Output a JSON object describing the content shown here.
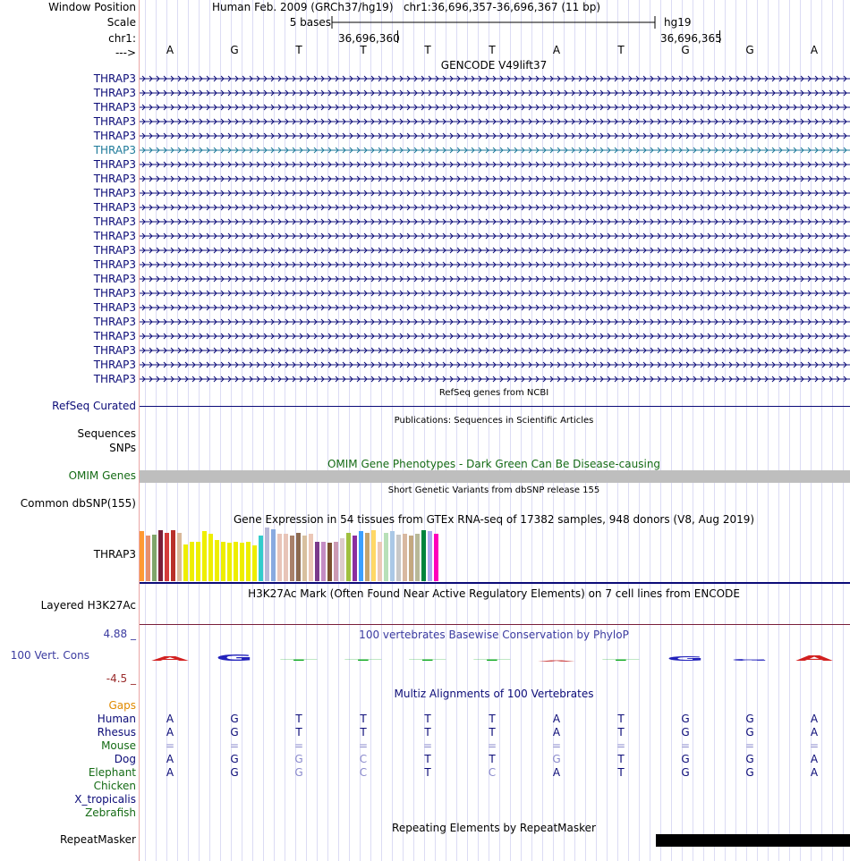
{
  "ruler": {
    "window_label": "Window Position",
    "scale_label": "Scale",
    "chrom_label": "chr1:",
    "strand_label": "--->",
    "assembly_title": "Human Feb. 2009 (GRCh37/hg19)",
    "position": "chr1:36,696,357-36,696,367 (11 bp)",
    "scale_text": "5 bases",
    "assembly_short": "hg19",
    "tick1": "36,696,360",
    "tick2": "36,696,365"
  },
  "bases": [
    "A",
    "G",
    "T",
    "T",
    "T",
    "T",
    "A",
    "T",
    "G",
    "G",
    "A"
  ],
  "gencode": {
    "title": "GENCODE V49lift37",
    "transcripts": [
      {
        "label": "THRAP3",
        "color": "#0c0c78"
      },
      {
        "label": "THRAP3",
        "color": "#0c0c78"
      },
      {
        "label": "THRAP3",
        "color": "#0c0c78"
      },
      {
        "label": "THRAP3",
        "color": "#0c0c78"
      },
      {
        "label": "THRAP3",
        "color": "#0c0c78"
      },
      {
        "label": "THRAP3",
        "color": "#1e7a9a"
      },
      {
        "label": "THRAP3",
        "color": "#0c0c78"
      },
      {
        "label": "THRAP3",
        "color": "#0c0c78"
      },
      {
        "label": "THRAP3",
        "color": "#0c0c78"
      },
      {
        "label": "THRAP3",
        "color": "#0c0c78"
      },
      {
        "label": "THRAP3",
        "color": "#0c0c78"
      },
      {
        "label": "THRAP3",
        "color": "#0c0c78"
      },
      {
        "label": "THRAP3",
        "color": "#0c0c78"
      },
      {
        "label": "THRAP3",
        "color": "#0c0c78"
      },
      {
        "label": "THRAP3",
        "color": "#0c0c78"
      },
      {
        "label": "THRAP3",
        "color": "#0c0c78"
      },
      {
        "label": "THRAP3",
        "color": "#0c0c78"
      },
      {
        "label": "THRAP3",
        "color": "#0c0c78"
      },
      {
        "label": "THRAP3",
        "color": "#0c0c78"
      },
      {
        "label": "THRAP3",
        "color": "#0c0c78"
      },
      {
        "label": "THRAP3",
        "color": "#0c0c78"
      },
      {
        "label": "THRAP3",
        "color": "#0c0c78"
      }
    ]
  },
  "refseq": {
    "title": "RefSeq genes from NCBI",
    "label": "RefSeq Curated"
  },
  "publications": {
    "title": "Publications: Sequences in Scientific Articles",
    "label_sequences": "Sequences",
    "label_snps": "SNPs"
  },
  "omim": {
    "title": "OMIM Gene Phenotypes - Dark Green Can Be Disease-causing",
    "label": "OMIM Genes"
  },
  "dbsnp": {
    "title": "Short Genetic Variants from dbSNP release 155",
    "label": "Common dbSNP(155)"
  },
  "gtex": {
    "title": "Gene Expression in 54 tissues from GTEx RNA-seq of 17382 samples, 948 donors (V8, Aug 2019)",
    "label": "THRAP3",
    "bars": [
      {
        "h": 0.93,
        "c": "#ff9a33"
      },
      {
        "h": 0.85,
        "c": "#e88f6b"
      },
      {
        "h": 0.87,
        "c": "#7fa56b"
      },
      {
        "h": 0.95,
        "c": "#7a1f3a"
      },
      {
        "h": 0.9,
        "c": "#d43b3b"
      },
      {
        "h": 0.95,
        "c": "#b9302a"
      },
      {
        "h": 0.9,
        "c": "#d9b89a"
      },
      {
        "h": 0.68,
        "c": "#eeee00"
      },
      {
        "h": 0.74,
        "c": "#eeee00"
      },
      {
        "h": 0.74,
        "c": "#eeee00"
      },
      {
        "h": 0.93,
        "c": "#eeee00"
      },
      {
        "h": 0.88,
        "c": "#eeee00"
      },
      {
        "h": 0.76,
        "c": "#eeee00"
      },
      {
        "h": 0.74,
        "c": "#eeee00"
      },
      {
        "h": 0.71,
        "c": "#eeee00"
      },
      {
        "h": 0.74,
        "c": "#eeee00"
      },
      {
        "h": 0.72,
        "c": "#eeee00"
      },
      {
        "h": 0.74,
        "c": "#eeee00"
      },
      {
        "h": 0.66,
        "c": "#eeee00"
      },
      {
        "h": 0.85,
        "c": "#33cccc"
      },
      {
        "h": 1.0,
        "c": "#b8b8d8"
      },
      {
        "h": 0.96,
        "c": "#88aae0"
      },
      {
        "h": 0.88,
        "c": "#e8c4b8"
      },
      {
        "h": 0.88,
        "c": "#e8c4b8"
      },
      {
        "h": 0.85,
        "c": "#a8806a"
      },
      {
        "h": 0.9,
        "c": "#8c6a50"
      },
      {
        "h": 0.85,
        "c": "#d8c0a0"
      },
      {
        "h": 0.88,
        "c": "#ecc8b8"
      },
      {
        "h": 0.74,
        "c": "#7a3a8c"
      },
      {
        "h": 0.74,
        "c": "#c48cc4"
      },
      {
        "h": 0.71,
        "c": "#7a5030"
      },
      {
        "h": 0.74,
        "c": "#cc9ab4"
      },
      {
        "h": 0.8,
        "c": "#ddcccc"
      },
      {
        "h": 0.9,
        "c": "#a0c040"
      },
      {
        "h": 0.85,
        "c": "#8a2ea0"
      },
      {
        "h": 0.93,
        "c": "#3ba0ff"
      },
      {
        "h": 0.9,
        "c": "#c4a46e"
      },
      {
        "h": 0.95,
        "c": "#ffd866"
      },
      {
        "h": 0.74,
        "c": "#ecc8b8"
      },
      {
        "h": 0.9,
        "c": "#b8e0b8"
      },
      {
        "h": 0.93,
        "c": "#aac8e6"
      },
      {
        "h": 0.87,
        "c": "#c8c8c8"
      },
      {
        "h": 0.88,
        "c": "#d8b8a0"
      },
      {
        "h": 0.85,
        "c": "#c4a880"
      },
      {
        "h": 0.88,
        "c": "#b8b898"
      },
      {
        "h": 0.95,
        "c": "#00843d"
      },
      {
        "h": 0.93,
        "c": "#aaaaee"
      },
      {
        "h": 0.88,
        "c": "#ff00bb"
      }
    ]
  },
  "h3k27ac": {
    "title": "H3K27Ac Mark (Often Found Near Active Regulatory Elements) on 7 cell lines from ENCODE",
    "label": "Layered H3K27Ac"
  },
  "conservation": {
    "title": "100 vertebrates Basewise Conservation by PhyloP",
    "label": "100 Vert. Cons",
    "max": "4.88 _",
    "min": "-4.5 _",
    "scores": [
      3.2,
      4.0,
      0,
      0,
      0.3,
      0.6,
      -0.6,
      0.2,
      3.1,
      1.2,
      3.3
    ]
  },
  "multiz": {
    "title": "Multiz Alignments of 100 Vertebrates",
    "gaps_label": "Gaps",
    "species": [
      {
        "name": "Human",
        "color": "#0c0c78",
        "bases": [
          "A",
          "G",
          "T",
          "T",
          "T",
          "T",
          "A",
          "T",
          "G",
          "G",
          "A"
        ],
        "muted": []
      },
      {
        "name": "Rhesus",
        "color": "#0c0c78",
        "bases": [
          "A",
          "G",
          "T",
          "T",
          "T",
          "T",
          "A",
          "T",
          "G",
          "G",
          "A"
        ],
        "muted": []
      },
      {
        "name": "Mouse",
        "color": "#156b15",
        "bases": [
          "=",
          "=",
          "=",
          "=",
          "=",
          "=",
          "=",
          "=",
          "=",
          "=",
          "="
        ],
        "muted": [
          0,
          1,
          2,
          3,
          4,
          5,
          6,
          7,
          8,
          9,
          10
        ]
      },
      {
        "name": "Dog",
        "color": "#0c0c78",
        "bases": [
          "A",
          "G",
          "G",
          "C",
          "T",
          "T",
          "G",
          "T",
          "G",
          "G",
          "A"
        ],
        "muted": [
          2,
          3,
          6
        ]
      },
      {
        "name": "Elephant",
        "color": "#156b15",
        "bases": [
          "A",
          "G",
          "G",
          "C",
          "T",
          "C",
          "A",
          "T",
          "G",
          "G",
          "A"
        ],
        "muted": [
          2,
          3,
          5
        ]
      },
      {
        "name": "Chicken",
        "color": "#156b15",
        "bases": [],
        "muted": []
      },
      {
        "name": "X_tropicalis",
        "color": "#0c0c78",
        "bases": [],
        "muted": []
      },
      {
        "name": "Zebrafish",
        "color": "#156b15",
        "bases": [],
        "muted": []
      }
    ]
  },
  "repeatmasker": {
    "title": "Repeating Elements by RepeatMasker",
    "label": "RepeatMasker"
  }
}
